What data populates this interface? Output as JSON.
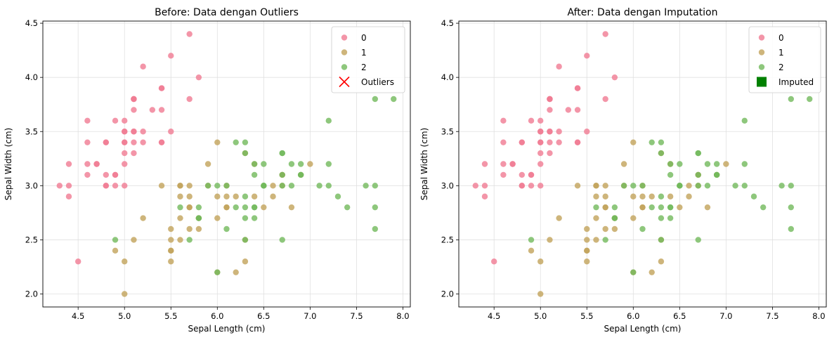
{
  "chart_data": [
    {
      "type": "scatter",
      "title": "Before: Data dengan Outliers",
      "xlabel": "Sepal Length (cm)",
      "ylabel": "Sepal Width (cm)",
      "xlim": [
        4.12,
        8.08
      ],
      "ylim": [
        1.88,
        4.52
      ],
      "xticks": [
        "4.5",
        "5.0",
        "5.5",
        "6.0",
        "6.5",
        "7.0",
        "7.5",
        "8.0"
      ],
      "yticks": [
        "2.0",
        "2.5",
        "3.0",
        "3.5",
        "4.0",
        "4.5"
      ],
      "grid": true,
      "legend_position": "upper right",
      "legend": [
        "0",
        "1",
        "2",
        "Outliers"
      ],
      "series": [
        {
          "name": "0",
          "color": "#f07b92",
          "marker": "circle",
          "x": [
            5.1,
            4.9,
            4.7,
            4.6,
            5.0,
            5.4,
            4.6,
            5.0,
            4.4,
            4.9,
            5.4,
            4.8,
            4.8,
            4.3,
            5.8,
            5.7,
            5.4,
            5.1,
            5.7,
            5.1,
            5.4,
            5.1,
            4.6,
            5.1,
            4.8,
            5.0,
            5.0,
            5.2,
            5.2,
            4.7,
            4.8,
            5.4,
            5.2,
            5.5,
            4.9,
            5.0,
            5.5,
            4.9,
            4.4,
            5.1,
            5.0,
            4.5,
            4.4,
            5.0,
            5.1,
            4.8,
            5.1,
            4.6,
            5.3,
            5.0
          ],
          "y": [
            3.5,
            3.0,
            3.2,
            3.1,
            3.6,
            3.9,
            3.4,
            3.4,
            2.9,
            3.1,
            3.7,
            3.4,
            3.0,
            3.0,
            4.0,
            4.4,
            3.9,
            3.5,
            3.8,
            3.8,
            3.4,
            3.7,
            3.6,
            3.3,
            3.4,
            3.0,
            3.4,
            3.5,
            3.4,
            3.2,
            3.1,
            3.4,
            4.1,
            4.2,
            3.1,
            3.2,
            3.5,
            3.6,
            3.0,
            3.4,
            3.5,
            2.3,
            3.2,
            3.5,
            3.8,
            3.0,
            3.8,
            3.2,
            3.7,
            3.3
          ]
        },
        {
          "name": "1",
          "color": "#c2a35a",
          "marker": "circle",
          "x": [
            7.0,
            6.4,
            6.9,
            5.5,
            6.5,
            5.7,
            6.3,
            4.9,
            6.6,
            5.2,
            5.0,
            5.9,
            6.0,
            6.1,
            5.6,
            6.7,
            5.6,
            5.8,
            6.2,
            5.6,
            5.9,
            6.1,
            6.3,
            6.1,
            6.4,
            6.6,
            6.8,
            6.7,
            6.0,
            5.7,
            5.5,
            5.5,
            5.8,
            6.0,
            5.4,
            6.0,
            6.7,
            6.3,
            5.6,
            5.5,
            5.5,
            6.1,
            5.8,
            5.0,
            5.6,
            5.7,
            5.7,
            6.2,
            5.1,
            5.7
          ],
          "y": [
            3.2,
            3.2,
            3.1,
            2.3,
            2.8,
            2.8,
            3.3,
            2.4,
            2.9,
            2.7,
            2.0,
            3.0,
            2.2,
            2.9,
            2.9,
            3.1,
            3.0,
            2.7,
            2.2,
            2.5,
            3.2,
            2.8,
            2.5,
            2.8,
            2.9,
            3.0,
            2.8,
            3.0,
            2.9,
            2.6,
            2.4,
            2.4,
            2.7,
            2.7,
            3.0,
            3.4,
            3.1,
            2.3,
            3.0,
            2.5,
            2.6,
            3.0,
            2.6,
            2.3,
            2.7,
            3.0,
            2.9,
            2.9,
            2.5,
            2.8
          ]
        },
        {
          "name": "2",
          "color": "#72b95b",
          "marker": "circle",
          "x": [
            6.3,
            5.8,
            7.1,
            6.3,
            6.5,
            7.6,
            4.9,
            7.3,
            6.7,
            7.2,
            6.5,
            6.4,
            6.8,
            5.7,
            5.8,
            6.4,
            6.5,
            7.7,
            7.7,
            6.0,
            6.9,
            5.6,
            7.7,
            6.3,
            6.7,
            7.2,
            6.2,
            6.1,
            6.4,
            7.2,
            7.4,
            7.9,
            6.4,
            6.3,
            6.1,
            7.7,
            6.3,
            6.4,
            6.0,
            6.9,
            6.7,
            6.9,
            5.8,
            6.8,
            6.7,
            6.7,
            6.3,
            6.5,
            6.2,
            5.9
          ],
          "y": [
            3.3,
            2.7,
            3.0,
            2.9,
            3.0,
            3.0,
            2.5,
            2.9,
            2.5,
            3.6,
            3.2,
            2.7,
            3.0,
            2.5,
            2.8,
            3.2,
            3.0,
            3.8,
            2.6,
            2.2,
            3.2,
            2.8,
            2.8,
            2.7,
            3.3,
            3.2,
            2.8,
            3.0,
            2.8,
            3.0,
            2.8,
            3.8,
            2.8,
            2.8,
            2.6,
            3.0,
            3.4,
            3.1,
            3.0,
            3.1,
            3.1,
            3.1,
            2.7,
            3.2,
            3.3,
            3.0,
            2.5,
            3.0,
            3.4,
            3.0
          ]
        },
        {
          "name": "Outliers",
          "color": "#ff0000",
          "marker": "x",
          "x": [],
          "y": []
        }
      ]
    },
    {
      "type": "scatter",
      "title": "After: Data dengan Imputation",
      "xlabel": "Sepal Length (cm)",
      "ylabel": "Sepal Width (cm)",
      "xlim": [
        4.12,
        8.08
      ],
      "ylim": [
        1.88,
        4.52
      ],
      "xticks": [
        "4.5",
        "5.0",
        "5.5",
        "6.0",
        "6.5",
        "7.0",
        "7.5",
        "8.0"
      ],
      "yticks": [
        "2.0",
        "2.5",
        "3.0",
        "3.5",
        "4.0",
        "4.5"
      ],
      "grid": true,
      "legend_position": "upper right",
      "legend": [
        "0",
        "1",
        "2",
        "Imputed"
      ],
      "series": [
        {
          "name": "0",
          "color": "#f07b92",
          "marker": "circle",
          "x": [
            5.1,
            4.9,
            4.7,
            4.6,
            5.0,
            5.4,
            4.6,
            5.0,
            4.4,
            4.9,
            5.4,
            4.8,
            4.8,
            4.3,
            5.8,
            5.7,
            5.4,
            5.1,
            5.7,
            5.1,
            5.4,
            5.1,
            4.6,
            5.1,
            4.8,
            5.0,
            5.0,
            5.2,
            5.2,
            4.7,
            4.8,
            5.4,
            5.2,
            5.5,
            4.9,
            5.0,
            5.5,
            4.9,
            4.4,
            5.1,
            5.0,
            4.5,
            4.4,
            5.0,
            5.1,
            4.8,
            5.1,
            4.6,
            5.3,
            5.0
          ],
          "y": [
            3.5,
            3.0,
            3.2,
            3.1,
            3.6,
            3.9,
            3.4,
            3.4,
            2.9,
            3.1,
            3.7,
            3.4,
            3.0,
            3.0,
            4.0,
            4.4,
            3.9,
            3.5,
            3.8,
            3.8,
            3.4,
            3.7,
            3.6,
            3.3,
            3.4,
            3.0,
            3.4,
            3.5,
            3.4,
            3.2,
            3.1,
            3.4,
            4.1,
            4.2,
            3.1,
            3.2,
            3.5,
            3.6,
            3.0,
            3.4,
            3.5,
            2.3,
            3.2,
            3.5,
            3.8,
            3.0,
            3.8,
            3.2,
            3.7,
            3.3
          ]
        },
        {
          "name": "1",
          "color": "#c2a35a",
          "marker": "circle",
          "x": [
            7.0,
            6.4,
            6.9,
            5.5,
            6.5,
            5.7,
            6.3,
            4.9,
            6.6,
            5.2,
            5.0,
            5.9,
            6.0,
            6.1,
            5.6,
            6.7,
            5.6,
            5.8,
            6.2,
            5.6,
            5.9,
            6.1,
            6.3,
            6.1,
            6.4,
            6.6,
            6.8,
            6.7,
            6.0,
            5.7,
            5.5,
            5.5,
            5.8,
            6.0,
            5.4,
            6.0,
            6.7,
            6.3,
            5.6,
            5.5,
            5.5,
            6.1,
            5.8,
            5.0,
            5.6,
            5.7,
            5.7,
            6.2,
            5.1,
            5.7
          ],
          "y": [
            3.2,
            3.2,
            3.1,
            2.3,
            2.8,
            2.8,
            3.3,
            2.4,
            2.9,
            2.7,
            2.0,
            3.0,
            2.2,
            2.9,
            2.9,
            3.1,
            3.0,
            2.7,
            2.2,
            2.5,
            3.2,
            2.8,
            2.5,
            2.8,
            2.9,
            3.0,
            2.8,
            3.0,
            2.9,
            2.6,
            2.4,
            2.4,
            2.7,
            2.7,
            3.0,
            3.4,
            3.1,
            2.3,
            3.0,
            2.5,
            2.6,
            3.0,
            2.6,
            2.3,
            2.7,
            3.0,
            2.9,
            2.9,
            2.5,
            2.8
          ]
        },
        {
          "name": "2",
          "color": "#72b95b",
          "marker": "circle",
          "x": [
            6.3,
            5.8,
            7.1,
            6.3,
            6.5,
            7.6,
            4.9,
            7.3,
            6.7,
            7.2,
            6.5,
            6.4,
            6.8,
            5.7,
            5.8,
            6.4,
            6.5,
            7.7,
            7.7,
            6.0,
            6.9,
            5.6,
            7.7,
            6.3,
            6.7,
            7.2,
            6.2,
            6.1,
            6.4,
            7.2,
            7.4,
            7.9,
            6.4,
            6.3,
            6.1,
            7.7,
            6.3,
            6.4,
            6.0,
            6.9,
            6.7,
            6.9,
            5.8,
            6.8,
            6.7,
            6.7,
            6.3,
            6.5,
            6.2,
            5.9
          ],
          "y": [
            3.3,
            2.7,
            3.0,
            2.9,
            3.0,
            3.0,
            2.5,
            2.9,
            2.5,
            3.6,
            3.2,
            2.7,
            3.0,
            2.5,
            2.8,
            3.2,
            3.0,
            3.8,
            2.6,
            2.2,
            3.2,
            2.8,
            2.8,
            2.7,
            3.3,
            3.2,
            2.8,
            3.0,
            2.8,
            3.0,
            2.8,
            3.8,
            2.8,
            2.8,
            2.6,
            3.0,
            3.4,
            3.1,
            3.0,
            3.1,
            3.1,
            3.1,
            2.7,
            3.2,
            3.3,
            3.0,
            2.5,
            3.0,
            3.4,
            3.0
          ]
        },
        {
          "name": "Imputed",
          "color": "#008000",
          "marker": "square",
          "x": [],
          "y": []
        }
      ]
    }
  ]
}
